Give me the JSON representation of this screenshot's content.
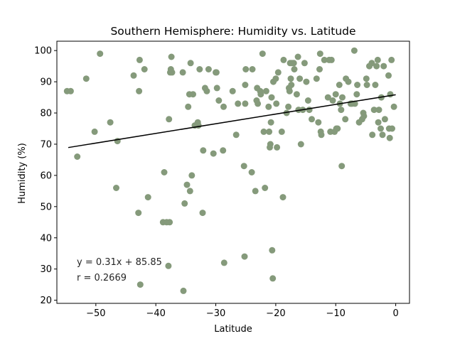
{
  "chart_data": {
    "type": "scatter",
    "title": "Southern Hemisphere: Humidity vs. Latitude",
    "xlabel": "Latitude",
    "ylabel": "Humidity (%)",
    "xlim": [
      -56.5,
      2.3
    ],
    "ylim": [
      19,
      103
    ],
    "xticks": [
      -50,
      -40,
      -30,
      -20,
      -10,
      0
    ],
    "xtick_labels": [
      "−50",
      "−40",
      "−30",
      "−20",
      "−10",
      "0"
    ],
    "yticks": [
      20,
      30,
      40,
      50,
      60,
      70,
      80,
      90,
      100
    ],
    "yticks_labels": [
      "20",
      "30",
      "40",
      "50",
      "60",
      "70",
      "80",
      "90",
      "100"
    ],
    "grid": false,
    "marker_color": "#859A7B",
    "line_color": "#000000",
    "regression": {
      "slope": 0.31,
      "intercept": 85.85,
      "x_range": [
        -54.6,
        0
      ]
    },
    "annotations": [
      "y = 0.31x + 85.85",
      "r = 0.2669"
    ],
    "points": [
      [
        -54.8,
        87
      ],
      [
        -54.2,
        87
      ],
      [
        -53.1,
        66
      ],
      [
        -51.6,
        91
      ],
      [
        -50.2,
        74
      ],
      [
        -49.3,
        99
      ],
      [
        -47.6,
        77
      ],
      [
        -46.4,
        71
      ],
      [
        -46.6,
        56
      ],
      [
        -43.7,
        92
      ],
      [
        -42.9,
        48
      ],
      [
        -42.8,
        87
      ],
      [
        -42.7,
        97
      ],
      [
        -42.6,
        25
      ],
      [
        -41.9,
        94
      ],
      [
        -41.3,
        53
      ],
      [
        -38.8,
        45
      ],
      [
        -38.6,
        61
      ],
      [
        -38.2,
        45
      ],
      [
        -37.7,
        45
      ],
      [
        -37.9,
        31
      ],
      [
        -37.8,
        78
      ],
      [
        -37.6,
        93
      ],
      [
        -37.5,
        94
      ],
      [
        -37.3,
        93
      ],
      [
        -37.4,
        98
      ],
      [
        -35.5,
        93
      ],
      [
        -35.2,
        51
      ],
      [
        -35.4,
        23
      ],
      [
        -34.8,
        57
      ],
      [
        -34.6,
        82
      ],
      [
        -34.4,
        86
      ],
      [
        -34.2,
        96
      ],
      [
        -34.3,
        55
      ],
      [
        -34.0,
        60
      ],
      [
        -33.8,
        86
      ],
      [
        -33.5,
        76
      ],
      [
        -33.0,
        77
      ],
      [
        -32.9,
        76
      ],
      [
        -32.7,
        94
      ],
      [
        -32.2,
        48
      ],
      [
        -32.1,
        68
      ],
      [
        -31.8,
        88
      ],
      [
        -31.5,
        87
      ],
      [
        -31.2,
        94
      ],
      [
        -30.4,
        67
      ],
      [
        -30.0,
        93
      ],
      [
        -29.9,
        93
      ],
      [
        -29.8,
        88
      ],
      [
        -29.5,
        84
      ],
      [
        -28.8,
        68
      ],
      [
        -28.7,
        82
      ],
      [
        -28.6,
        32
      ],
      [
        -27.2,
        87
      ],
      [
        -26.6,
        73
      ],
      [
        -26.3,
        83
      ],
      [
        -25.3,
        63
      ],
      [
        -25.2,
        34
      ],
      [
        -25.1,
        89
      ],
      [
        -25.0,
        94
      ],
      [
        -25.1,
        83
      ],
      [
        -24.0,
        61
      ],
      [
        -23.9,
        94
      ],
      [
        -23.4,
        55
      ],
      [
        -23.2,
        84
      ],
      [
        -23.0,
        83
      ],
      [
        -23.1,
        88
      ],
      [
        -22.6,
        87
      ],
      [
        -22.5,
        86
      ],
      [
        -22.2,
        99
      ],
      [
        -22.0,
        74
      ],
      [
        -21.8,
        56
      ],
      [
        -21.6,
        87
      ],
      [
        -21.2,
        82
      ],
      [
        -21.1,
        74
      ],
      [
        -21.0,
        69
      ],
      [
        -20.9,
        70
      ],
      [
        -20.8,
        77
      ],
      [
        -20.7,
        85
      ],
      [
        -20.6,
        36
      ],
      [
        -20.5,
        27
      ],
      [
        -20.4,
        90
      ],
      [
        -20.0,
        91
      ],
      [
        -19.9,
        83
      ],
      [
        -19.8,
        69
      ],
      [
        -19.6,
        93
      ],
      [
        -19.0,
        74
      ],
      [
        -18.8,
        53
      ],
      [
        -18.7,
        97
      ],
      [
        -18.2,
        80
      ],
      [
        -17.9,
        82
      ],
      [
        -17.8,
        88
      ],
      [
        -17.7,
        87
      ],
      [
        -17.6,
        96
      ],
      [
        -17.5,
        91
      ],
      [
        -17.4,
        89
      ],
      [
        -17.3,
        96
      ],
      [
        -17.0,
        96
      ],
      [
        -16.9,
        94
      ],
      [
        -16.5,
        86
      ],
      [
        -16.3,
        98
      ],
      [
        -16.2,
        81
      ],
      [
        -16.0,
        91
      ],
      [
        -15.8,
        70
      ],
      [
        -15.5,
        81
      ],
      [
        -15.2,
        96
      ],
      [
        -14.9,
        90
      ],
      [
        -14.6,
        84
      ],
      [
        -14.4,
        81
      ],
      [
        -14.0,
        78
      ],
      [
        -13.2,
        91
      ],
      [
        -12.9,
        77
      ],
      [
        -12.7,
        94
      ],
      [
        -12.6,
        99
      ],
      [
        -12.5,
        74
      ],
      [
        -12.4,
        73
      ],
      [
        -11.9,
        97
      ],
      [
        -11.3,
        85
      ],
      [
        -11.1,
        97
      ],
      [
        -10.9,
        74
      ],
      [
        -10.7,
        97
      ],
      [
        -10.5,
        84
      ],
      [
        -10.2,
        74
      ],
      [
        -10.0,
        86
      ],
      [
        -9.9,
        75
      ],
      [
        -9.7,
        75
      ],
      [
        -9.4,
        89
      ],
      [
        -9.3,
        83
      ],
      [
        -9.1,
        81
      ],
      [
        -9.0,
        63
      ],
      [
        -8.9,
        85
      ],
      [
        -8.4,
        78
      ],
      [
        -8.3,
        91
      ],
      [
        -7.9,
        90
      ],
      [
        -7.5,
        83
      ],
      [
        -7.3,
        83
      ],
      [
        -6.9,
        100
      ],
      [
        -6.8,
        83
      ],
      [
        -6.5,
        86
      ],
      [
        -6.4,
        89
      ],
      [
        -6.1,
        77
      ],
      [
        -5.6,
        78
      ],
      [
        -5.4,
        80
      ],
      [
        -5.3,
        79
      ],
      [
        -4.9,
        91
      ],
      [
        -4.8,
        89
      ],
      [
        -4.4,
        95
      ],
      [
        -4.0,
        96
      ],
      [
        -3.9,
        73
      ],
      [
        -3.6,
        81
      ],
      [
        -3.4,
        89
      ],
      [
        -3.2,
        95
      ],
      [
        -3.0,
        97
      ],
      [
        -2.9,
        77
      ],
      [
        -2.8,
        81
      ],
      [
        -2.5,
        75
      ],
      [
        -2.4,
        85
      ],
      [
        -2.2,
        73
      ],
      [
        -2.0,
        95
      ],
      [
        -1.8,
        78
      ],
      [
        -1.2,
        92
      ],
      [
        -1.1,
        75
      ],
      [
        -1.0,
        72
      ],
      [
        -0.9,
        86
      ],
      [
        -0.7,
        97
      ],
      [
        -0.6,
        75
      ],
      [
        -0.3,
        82
      ]
    ]
  }
}
